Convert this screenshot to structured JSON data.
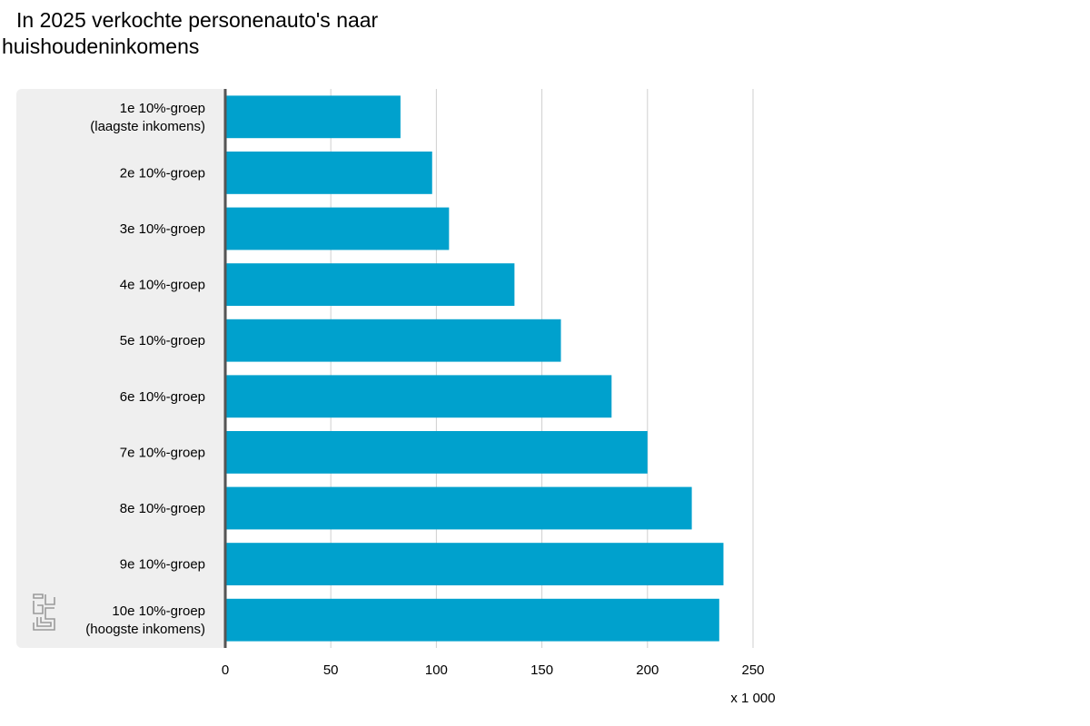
{
  "colors": {
    "bar": "#00a1cd",
    "panel": "#efefef",
    "grid": "#cfcfcf",
    "axis": "#555555"
  },
  "logo": {
    "icon": "cbs-logo-icon",
    "text": "cbs"
  },
  "chart_data": {
    "type": "bar",
    "orientation": "horizontal",
    "title": "In 2025 verkochte personenauto's naar huishoudeninkomens",
    "categories": [
      [
        "1e 10%-groep",
        "(laagste inkomens)"
      ],
      [
        "2e 10%-groep"
      ],
      [
        "3e 10%-groep"
      ],
      [
        "4e 10%-groep"
      ],
      [
        "5e 10%-groep"
      ],
      [
        "6e 10%-groep"
      ],
      [
        "7e 10%-groep"
      ],
      [
        "8e 10%-groep"
      ],
      [
        "9e 10%-groep"
      ],
      [
        "10e 10%-groep",
        "(hoogste inkomens)"
      ]
    ],
    "values": [
      83,
      98,
      106,
      137,
      159,
      183,
      200,
      221,
      236,
      234
    ],
    "xlim": [
      0,
      250
    ],
    "xticks": [
      0,
      50,
      100,
      150,
      200,
      250
    ],
    "xunit": "x 1 000",
    "xlabel": "",
    "ylabel": "",
    "grid": "vertical",
    "legend": "none"
  }
}
